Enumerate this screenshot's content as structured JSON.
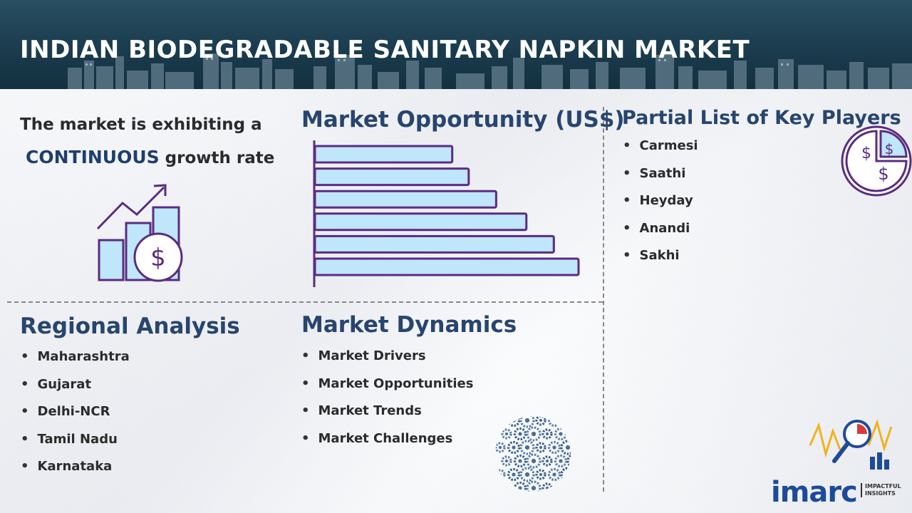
{
  "header": {
    "title": "INDIAN BIODEGRADABLE SANITARY NAPKIN MARKET"
  },
  "growth": {
    "line1": "The market is exhibiting a",
    "accent": "CONTINUOUS",
    "line2_rest": " growth rate"
  },
  "opportunity": {
    "title": "Market Opportunity (US$)"
  },
  "chart_data": {
    "type": "bar",
    "orientation": "horizontal",
    "values": [
      1,
      1.12,
      1.32,
      1.54,
      1.74,
      1.92
    ],
    "bar_fill": "#bfe6fb",
    "bar_stroke": "#5a2c82",
    "grid": false
  },
  "players": {
    "title": "Partial List of Key Players",
    "items": [
      "Carmesi",
      "Saathi",
      "Heyday",
      "Anandi",
      "Sakhi"
    ]
  },
  "regional": {
    "title": "Regional Analysis",
    "items": [
      "Maharashtra",
      "Gujarat",
      "Delhi-NCR",
      "Tamil Nadu",
      "Karnataka"
    ]
  },
  "dynamics": {
    "title": "Market Dynamics",
    "items": [
      "Market Drivers",
      "Market Opportunities",
      "Market Trends",
      "Market Challenges"
    ]
  },
  "logo": {
    "name": "imarc",
    "tagline": "IMPACTFUL INSIGHTS"
  },
  "colors": {
    "heading": "#27456e",
    "icon_stroke": "#5a2c82",
    "icon_fill": "#bfe6fb"
  },
  "icons": [
    "growth-chart-dollar-icon",
    "dollar-pie-icon",
    "gears-globe-icon",
    "magnifier-chart-icon"
  ]
}
